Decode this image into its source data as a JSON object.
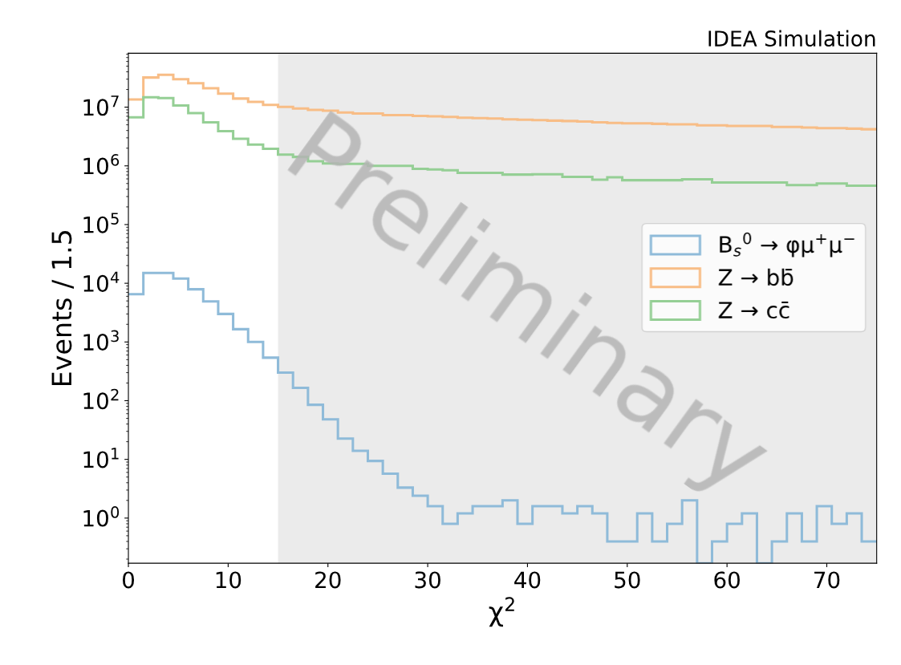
{
  "chart_data": {
    "type": "histogram",
    "xlabel": "χ$^{2}$",
    "ylabel": "Events / 1.5",
    "bins": [
      0,
      1.5,
      3,
      4.5,
      6,
      7.5,
      9,
      10.5,
      12,
      13.5,
      15,
      16.5,
      18,
      19.5,
      21,
      22.5,
      24,
      25.5,
      27,
      28.5,
      30,
      31.5,
      33,
      34.5,
      36,
      37.5,
      39,
      40.5,
      42,
      43.5,
      45,
      46.5,
      48,
      49.5,
      51,
      52.5,
      54,
      55.5,
      57,
      58.5,
      60,
      61.5,
      63,
      64.5,
      66,
      67.5,
      69,
      70.5,
      72,
      73.5,
      75
    ],
    "series": [
      {
        "name": "B$_{s}$$^{0}$ → φμ$^{+}$μ$^{−}$",
        "color": "#8fbbd9",
        "values": [
          6500,
          15000,
          15000,
          12000,
          7900,
          4900,
          3000,
          1650,
          1000,
          540,
          300,
          165,
          85,
          48,
          22.6,
          14,
          9.4,
          5.7,
          3.3,
          2.4,
          1.6,
          0.8,
          1.2,
          1.6,
          1.6,
          2.0,
          0.8,
          1.6,
          1.6,
          1.2,
          1.6,
          1.2,
          0.4,
          0.4,
          1.2,
          0.4,
          0.8,
          2.0,
          null,
          0.4,
          0.8,
          1.2,
          null,
          0.4,
          1.2,
          0.4,
          1.6,
          0.8,
          1.2,
          0.4
        ]
      },
      {
        "name": "Z → bb̄",
        "color": "#f8bd86",
        "values": [
          13500000,
          32000000,
          35500000,
          30000000,
          25500000,
          21000000,
          17000000,
          14000000,
          12300000,
          10900000,
          10100000,
          9500000,
          9000000,
          8700000,
          8100000,
          7800000,
          7800000,
          7300000,
          7300000,
          7100000,
          7000000,
          6800000,
          6600000,
          6500000,
          6400000,
          6200000,
          6100000,
          6000000,
          5900000,
          5800000,
          5700000,
          5500000,
          5400000,
          5300000,
          5300000,
          5200000,
          5100000,
          5100000,
          4900000,
          4900000,
          4800000,
          4800000,
          4800000,
          4600000,
          4600000,
          4500000,
          4400000,
          4400000,
          4300000,
          4200000
        ]
      },
      {
        "name": "Z → cc̄",
        "color": "#95cf95",
        "values": [
          6700000,
          14700000,
          14300000,
          10700000,
          7900000,
          5500000,
          3900000,
          2900000,
          2300000,
          1950000,
          1550000,
          1420000,
          1200000,
          1100000,
          1080000,
          1080000,
          1000000,
          1000000,
          1000000,
          890000,
          870000,
          840000,
          760000,
          760000,
          760000,
          710000,
          710000,
          720000,
          720000,
          650000,
          650000,
          580000,
          640000,
          570000,
          570000,
          570000,
          570000,
          590000,
          590000,
          520000,
          520000,
          520000,
          520000,
          520000,
          470000,
          470000,
          500000,
          500000,
          460000,
          460000
        ]
      }
    ],
    "xlim": [
      0,
      75
    ],
    "xticks": [
      0,
      10,
      20,
      30,
      40,
      50,
      60,
      70
    ],
    "log": "y",
    "ylim": [
      0.17,
      83000000
    ],
    "yticks": [
      {
        "value": 1,
        "label": "10$^{0}$"
      },
      {
        "value": 10,
        "label": "10$^{1}$"
      },
      {
        "value": 100,
        "label": "10$^{2}$"
      },
      {
        "value": 1000,
        "label": "10$^{3}$"
      },
      {
        "value": 10000,
        "label": "10$^{4}$"
      },
      {
        "value": 100000,
        "label": "10$^{5}$"
      },
      {
        "value": 1000000,
        "label": "10$^{6}$"
      },
      {
        "value": 10000000,
        "label": "10$^{7}$"
      }
    ],
    "bands": [
      {
        "axis": "x",
        "from": 15,
        "to": 75,
        "color": "#ebebeb"
      }
    ],
    "legend": "right",
    "grid": false,
    "annotations": [
      "IDEA Simulation",
      "Preliminary"
    ]
  }
}
